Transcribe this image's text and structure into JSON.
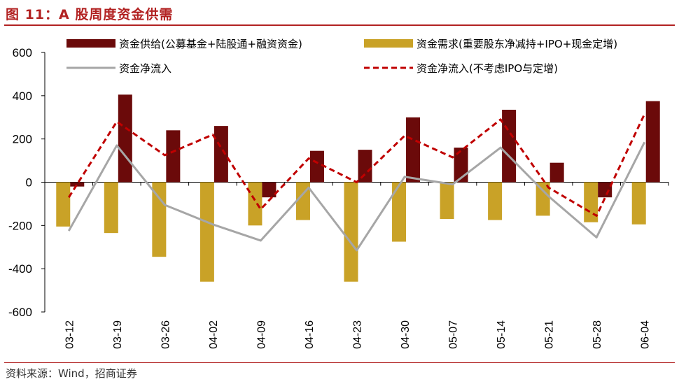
{
  "header": {
    "title": "图 11：A 股周度资金供需"
  },
  "footer": {
    "source": "资料来源：Wind，招商证券"
  },
  "colors": {
    "supply": "#6b0a0a",
    "demand": "#c9a227",
    "net": "#a6a6a6",
    "net_ex": "#c00000",
    "accent": "#b22222"
  },
  "chart_data": {
    "type": "bar",
    "categories": [
      "03-12",
      "03-19",
      "03-26",
      "04-02",
      "04-09",
      "04-16",
      "04-23",
      "04-30",
      "05-07",
      "05-14",
      "05-21",
      "05-28",
      "06-04"
    ],
    "ylim": [
      -600,
      600
    ],
    "yticks": [
      -600,
      -400,
      -200,
      0,
      200,
      400,
      600
    ],
    "ytick_labels": [
      "-600",
      "-400",
      "-200",
      "0",
      "200",
      "400",
      "600"
    ],
    "legend_position": "top",
    "grid": false,
    "series": [
      {
        "name": "资金供给(公募基金+陆股通+融资资金)",
        "type": "bar",
        "values": [
          -20,
          405,
          240,
          260,
          -70,
          145,
          150,
          300,
          160,
          335,
          90,
          -70,
          375
        ]
      },
      {
        "name": "资金需求(重要股东净减持+IPO+现金定增)",
        "type": "bar",
        "values": [
          -205,
          -235,
          -345,
          -460,
          -200,
          -175,
          -460,
          -275,
          -170,
          -175,
          -155,
          -185,
          -195
        ]
      },
      {
        "name": "资金净流入",
        "type": "line",
        "values": [
          -225,
          170,
          -105,
          -195,
          -270,
          -25,
          -315,
          25,
          -10,
          160,
          -65,
          -255,
          185
        ]
      },
      {
        "name": "资金净流入(不考虑IPO与定增)",
        "type": "line",
        "values": [
          -70,
          280,
          125,
          220,
          -125,
          110,
          0,
          215,
          115,
          290,
          -25,
          -155,
          315
        ]
      }
    ]
  }
}
